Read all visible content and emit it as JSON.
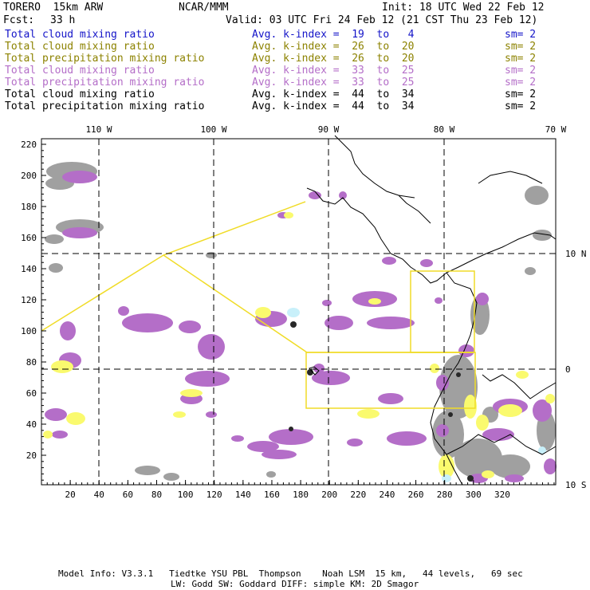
{
  "header": {
    "model": "TORERO  15km ARW",
    "center": "NCAR/MMM",
    "init": "Init: 18 UTC Wed 22 Feb 12",
    "fcst_label": "Fcst:",
    "fcst_value": "33 h",
    "valid": "Valid: 03 UTC Fri 24 Feb 12 (21 CST Thu 23 Feb 12)"
  },
  "legend": [
    {
      "field": "Total cloud mixing ratio",
      "kindex": "Avg. k-index =  19  to   4",
      "sm": "sm= 2",
      "color": "#1414c8"
    },
    {
      "field": "Total cloud mixing ratio",
      "kindex": "Avg. k-index =  26  to  20",
      "sm": "sm= 2",
      "color": "#8c8200"
    },
    {
      "field": "Total precipitation mixing ratio",
      "kindex": "Avg. k-index =  26  to  20",
      "sm": "sm= 2",
      "color": "#8c8200"
    },
    {
      "field": "Total cloud mixing ratio",
      "kindex": "Avg. k-index =  33  to  25",
      "sm": "sm= 2",
      "color": "#b46ec8"
    },
    {
      "field": "Total precipitation mixing ratio",
      "kindex": "Avg. k-index =  33  to  25",
      "sm": "sm= 2",
      "color": "#b46ec8"
    },
    {
      "field": "Total cloud mixing ratio",
      "kindex": "Avg. k-index =  44  to  34",
      "sm": "sm= 2",
      "color": "#000000"
    },
    {
      "field": "Total precipitation mixing ratio",
      "kindex": "Avg. k-index =  44  to  34",
      "sm": "sm= 2",
      "color": "#000000"
    }
  ],
  "axes": {
    "left_ticks": [
      "220",
      "200",
      "180",
      "160",
      "140",
      "120",
      "100",
      "80",
      "60",
      "40",
      "20"
    ],
    "bottom_ticks": [
      "20",
      "40",
      "60",
      "80",
      "100",
      "120",
      "140",
      "160",
      "180",
      "200",
      "220",
      "240",
      "260",
      "280",
      "300",
      "320"
    ],
    "lon_labels": [
      "110 W",
      "100 W",
      "90 W",
      "80 W",
      "70 W"
    ],
    "lat_labels": [
      "10 N",
      "0",
      "10 S"
    ]
  },
  "footer": {
    "line1": "Model Info: V3.3.1   Tiedtke YSU PBL  Thompson    Noah LSM  15 km,   44 levels,   69 sec",
    "line2": "LW: Godd SW: Goddard DIFF: simple KM: 2D Smagor"
  },
  "colors": {
    "gray_cloud": "#a0a0a0",
    "purple_cloud": "#b46ec8",
    "yellow_cloud": "#fafa6e",
    "cyan_cloud": "#c8f0fa",
    "domain_box": "#f0dc28"
  }
}
